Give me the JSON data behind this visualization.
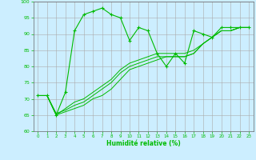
{
  "xlabel": "Humidité relative (%)",
  "xlim": [
    -0.5,
    23.5
  ],
  "ylim": [
    60,
    100
  ],
  "yticks": [
    60,
    65,
    70,
    75,
    80,
    85,
    90,
    95,
    100
  ],
  "xticks": [
    0,
    1,
    2,
    3,
    4,
    5,
    6,
    7,
    8,
    9,
    10,
    11,
    12,
    13,
    14,
    15,
    16,
    17,
    18,
    19,
    20,
    21,
    22,
    23
  ],
  "bg_color": "#cceeff",
  "grid_color": "#aaaaaa",
  "line_color": "#00bb00",
  "line1": [
    71,
    71,
    65,
    72,
    91,
    96,
    97,
    98,
    96,
    95,
    88,
    92,
    91,
    84,
    80,
    84,
    81,
    91,
    90,
    89,
    92,
    92,
    92,
    92
  ],
  "line2": [
    71,
    71,
    65,
    67,
    69,
    70,
    72,
    74,
    76,
    79,
    81,
    82,
    83,
    84,
    84,
    84,
    84,
    85,
    87,
    89,
    91,
    91,
    92,
    92
  ],
  "line3": [
    71,
    71,
    65.5,
    66.5,
    68,
    69,
    71,
    73,
    75,
    78,
    80,
    81,
    82,
    83,
    83,
    83,
    83,
    84,
    87,
    89,
    91,
    91,
    92,
    92
  ],
  "line4": [
    71,
    71,
    65,
    66,
    67,
    68,
    70,
    71,
    73,
    76,
    79,
    80,
    81,
    82,
    83,
    83,
    83,
    84,
    87,
    89,
    91,
    91,
    92,
    92
  ]
}
